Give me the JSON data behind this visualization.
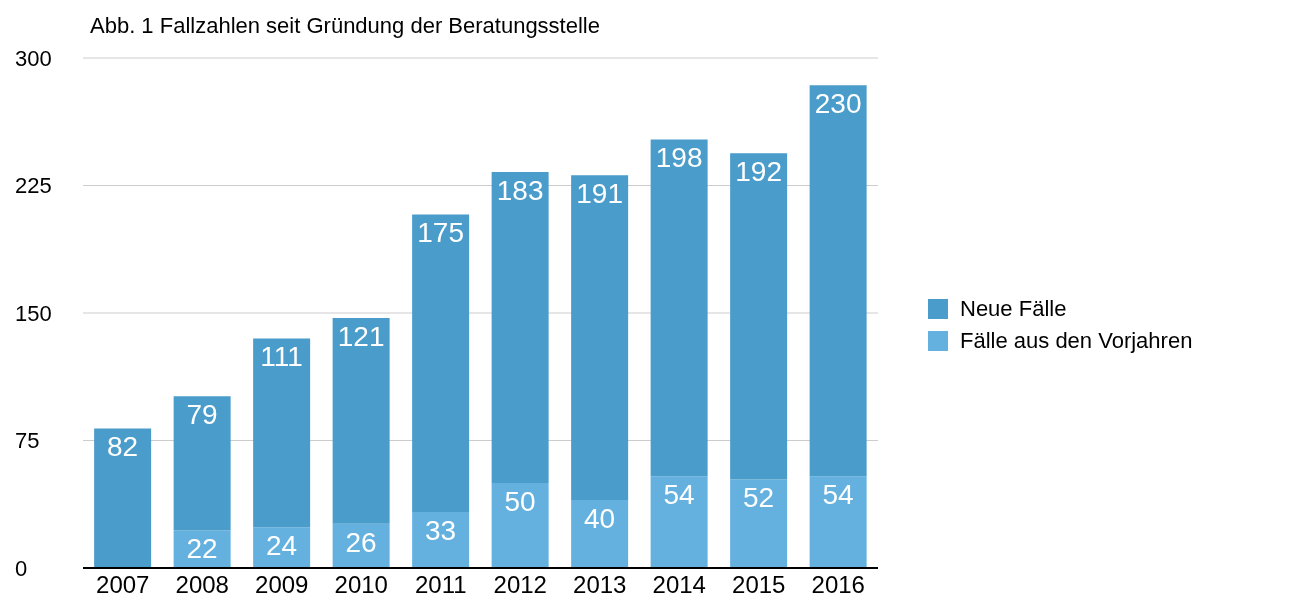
{
  "chart_data": {
    "type": "bar",
    "title": "Abb. 1 Fallzahlen seit Gründung der Beratungsstelle",
    "categories": [
      "2007",
      "2008",
      "2009",
      "2010",
      "2011",
      "2012",
      "2013",
      "2014",
      "2015",
      "2016"
    ],
    "series": [
      {
        "name": "Fälle aus den Vorjahren",
        "color": "#64b1e0",
        "values": [
          null,
          22,
          24,
          26,
          33,
          50,
          40,
          54,
          52,
          54
        ]
      },
      {
        "name": "Neue Fälle",
        "color": "#4a9ccb",
        "values": [
          82,
          79,
          111,
          121,
          175,
          183,
          191,
          198,
          192,
          230
        ]
      }
    ],
    "stacked": true,
    "ylim": [
      0,
      300
    ],
    "yticks": [
      0,
      75,
      150,
      225,
      300
    ],
    "grid": "y",
    "legend": "right",
    "data_labels": true
  }
}
